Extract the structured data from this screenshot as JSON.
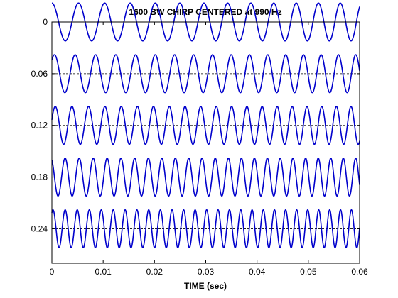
{
  "chart_data": {
    "type": "line",
    "title": "1600 BW CHIRP CENTERED at 990 Hz",
    "xlabel": "TIME (sec)",
    "ylabel": "",
    "xlim": [
      0,
      0.06
    ],
    "ylim": [
      0,
      0.28
    ],
    "y_reversed": true,
    "grid": false,
    "legend": "none",
    "line_color": "#0000cc",
    "baseline_style": "dashed",
    "x_ticks": [
      "0",
      "0.01",
      "0.02",
      "0.03",
      "0.04",
      "0.05",
      "0.06"
    ],
    "y_ticks": [
      "0",
      "0.06",
      "0.12",
      "0.18",
      "0.24"
    ],
    "x_tick_values": [
      0,
      0.01,
      0.02,
      0.03,
      0.04,
      0.05,
      0.06
    ],
    "y_tick_values": [
      0,
      0.06,
      0.12,
      0.18,
      0.24
    ],
    "series": [
      {
        "offset": 0.0,
        "amplitude": 0.022,
        "f_start": 190,
        "f_end": 240,
        "phase": 1.5708
      },
      {
        "offset": 0.06,
        "amplitude": 0.022,
        "f_start": 245,
        "f_end": 300,
        "phase": 0.8
      },
      {
        "offset": 0.12,
        "amplitude": 0.022,
        "f_start": 305,
        "f_end": 355,
        "phase": 0.3
      },
      {
        "offset": 0.18,
        "amplitude": 0.022,
        "f_start": 360,
        "f_end": 415,
        "phase": 2.0
      },
      {
        "offset": 0.24,
        "amplitude": 0.022,
        "f_start": 420,
        "f_end": 475,
        "phase": 1.0
      }
    ]
  }
}
